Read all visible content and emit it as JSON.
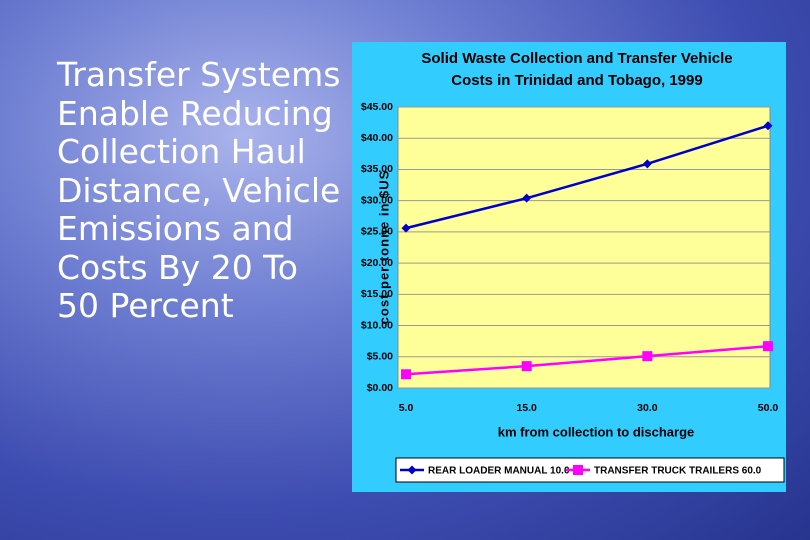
{
  "slide_text": "Transfer Systems Enable Reducing Collection Haul Distance, Vehicle Emissions and Costs By 20 To 50 Percent",
  "chart_data": {
    "type": "line",
    "title": "Solid Waste Collection and Transfer Vehicle Costs in Trinidad and Tobago, 1999",
    "x_label": "km from collection to discharge",
    "y_label": "cost per tonne in $US",
    "categories": [
      "5.0",
      "15.0",
      "30.0",
      "50.0"
    ],
    "series": [
      {
        "name": "REAR LOADER MANUAL 10.0",
        "color": "#0000cc",
        "marker": "diamond",
        "values": [
          25.6,
          30.4,
          35.9,
          42.0
        ]
      },
      {
        "name": "TRANSFER TRUCK TRAILERS 60.0",
        "color": "#ff00ff",
        "marker": "square",
        "values": [
          2.2,
          3.5,
          5.1,
          6.7
        ]
      }
    ],
    "ylim": [
      0,
      45
    ],
    "yticks": [
      {
        "value": 0,
        "label": "$0.00"
      },
      {
        "value": 5,
        "label": "$5.00"
      },
      {
        "value": 10,
        "label": "$10.00"
      },
      {
        "value": 15,
        "label": "$15.00"
      },
      {
        "value": 20,
        "label": "$20.00"
      },
      {
        "value": 25,
        "label": "$25.00"
      },
      {
        "value": 30,
        "label": "$30.00"
      },
      {
        "value": 35,
        "label": "$35.00"
      },
      {
        "value": 40,
        "label": "$40.00"
      },
      {
        "value": 45,
        "label": "$45.00"
      }
    ],
    "grid": true,
    "legend": "bottom"
  }
}
